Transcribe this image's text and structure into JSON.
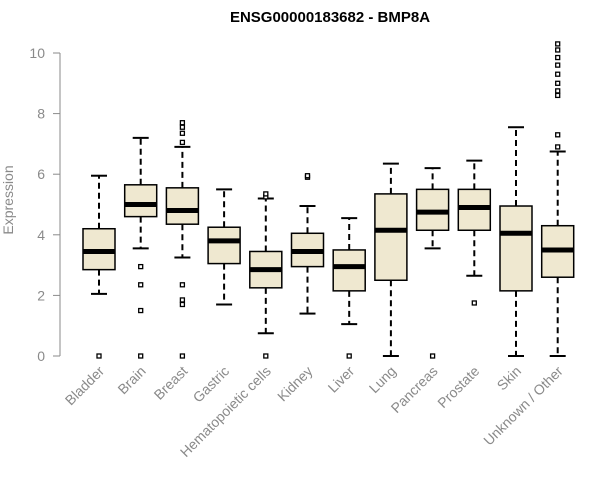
{
  "chart_data": {
    "type": "boxplot",
    "title": "ENSG00000183682 - BMP8A",
    "xlabel": "",
    "ylabel": "Expression",
    "ylim": [
      0,
      10.5
    ],
    "yticks": [
      0,
      2,
      4,
      6,
      8,
      10
    ],
    "box_fill": "#efe8d0",
    "categories": [
      "Bladder",
      "Brain",
      "Breast",
      "Gastric",
      "Hematopoietic cells",
      "Kidney",
      "Liver",
      "Lung",
      "Pancreas",
      "Prostate",
      "Skin",
      "Unknown / Other"
    ],
    "boxes": [
      {
        "min": 2.05,
        "q1": 2.85,
        "median": 3.45,
        "q3": 4.2,
        "max": 5.95,
        "outliers": [
          0
        ]
      },
      {
        "min": 3.55,
        "q1": 4.6,
        "median": 5.0,
        "q3": 5.65,
        "max": 7.2,
        "outliers": [
          0,
          1.5,
          2.35,
          2.95
        ]
      },
      {
        "min": 3.25,
        "q1": 4.35,
        "median": 4.8,
        "q3": 5.55,
        "max": 6.9,
        "outliers": [
          0,
          1.7,
          1.85,
          2.35,
          7.05,
          7.35,
          7.55,
          7.7
        ]
      },
      {
        "min": 1.7,
        "q1": 3.05,
        "median": 3.8,
        "q3": 4.25,
        "max": 5.5,
        "outliers": []
      },
      {
        "min": 0.75,
        "q1": 2.25,
        "median": 2.85,
        "q3": 3.45,
        "max": 5.2,
        "outliers": [
          0,
          5.25,
          5.35
        ]
      },
      {
        "min": 1.4,
        "q1": 2.95,
        "median": 3.45,
        "q3": 4.05,
        "max": 4.95,
        "outliers": [
          5.9,
          5.95
        ]
      },
      {
        "min": 1.05,
        "q1": 2.15,
        "median": 2.95,
        "q3": 3.5,
        "max": 4.55,
        "outliers": [
          0
        ]
      },
      {
        "min": 0,
        "q1": 2.5,
        "median": 4.15,
        "q3": 5.35,
        "max": 6.35,
        "outliers": []
      },
      {
        "min": 3.55,
        "q1": 4.15,
        "median": 4.75,
        "q3": 5.5,
        "max": 6.2,
        "outliers": [
          0
        ]
      },
      {
        "min": 2.65,
        "q1": 4.15,
        "median": 4.9,
        "q3": 5.5,
        "max": 6.45,
        "outliers": [
          1.75
        ]
      },
      {
        "min": 0,
        "q1": 2.15,
        "median": 4.05,
        "q3": 4.95,
        "max": 7.55,
        "outliers": []
      },
      {
        "min": 0,
        "q1": 2.6,
        "median": 3.5,
        "q3": 4.3,
        "max": 6.75,
        "outliers": [
          6.9,
          7.3,
          8.6,
          8.75,
          9.0,
          9.3,
          9.6,
          9.85,
          10.1,
          10.3
        ]
      }
    ]
  }
}
